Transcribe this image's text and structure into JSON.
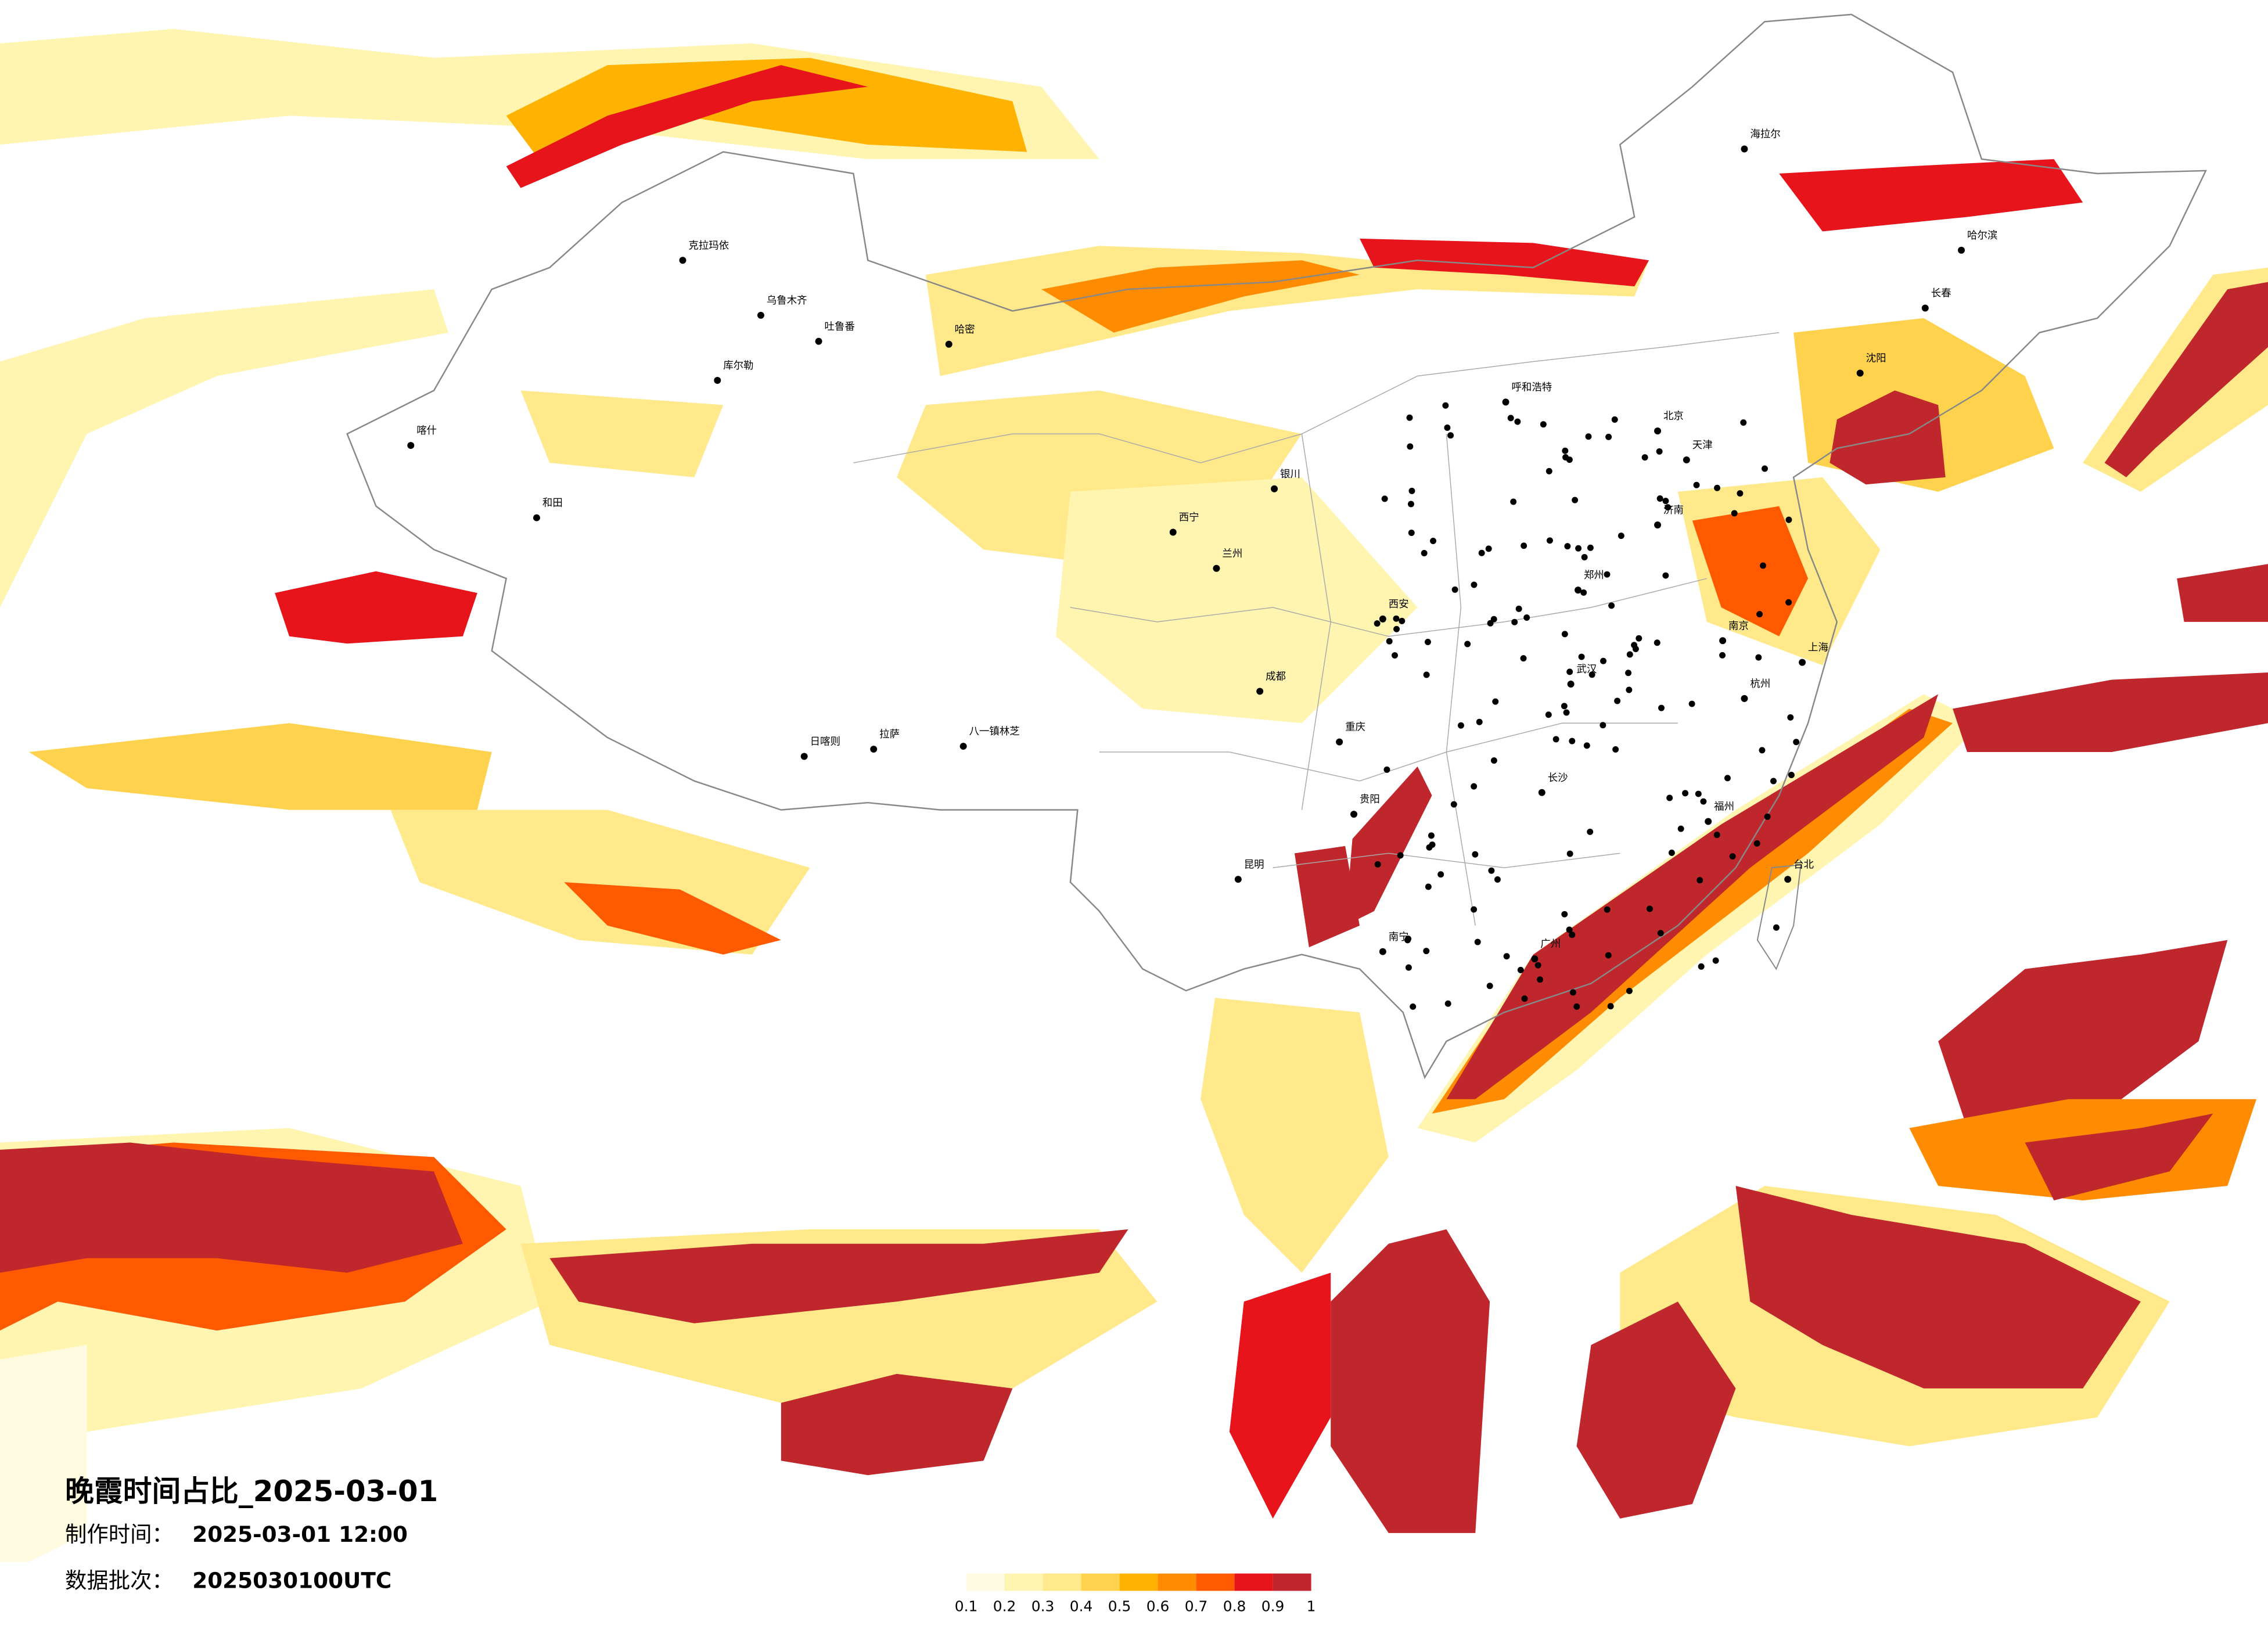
{
  "title": "晚霞时间占比_2025-03-01",
  "info": [
    {
      "label": "制作时间：",
      "value": "2025-03-01 12:00"
    },
    {
      "label": "数据批次：",
      "value": "2025030100UTC"
    }
  ],
  "colorbar": {
    "ticks": [
      0.1,
      0.2,
      0.3,
      0.4,
      0.5,
      0.6,
      0.7,
      0.8,
      0.9,
      1
    ],
    "colors": [
      "#fffbe0",
      "#fff4b0",
      "#ffe98a",
      "#ffd24d",
      "#ffb300",
      "#ff8c00",
      "#ff5a00",
      "#e8141c",
      "#c0272d"
    ]
  },
  "cities": [
    "克拉玛依",
    "乌鲁木齐",
    "吐鲁番",
    "哈密",
    "库尔勒",
    "喀什",
    "和田",
    "拉萨",
    "日喀则",
    "八一镇林芝",
    "西宁",
    "兰州",
    "银川",
    "呼和浩特",
    "北京",
    "天津",
    "哈尔滨",
    "长春",
    "沈阳",
    "上海",
    "武汉",
    "长沙",
    "成都",
    "重庆",
    "昆明",
    "贵阳",
    "南宁",
    "广州",
    "台北",
    "福州",
    "郑州",
    "西安",
    "济南",
    "南京",
    "杭州",
    "海拉尔"
  ]
}
